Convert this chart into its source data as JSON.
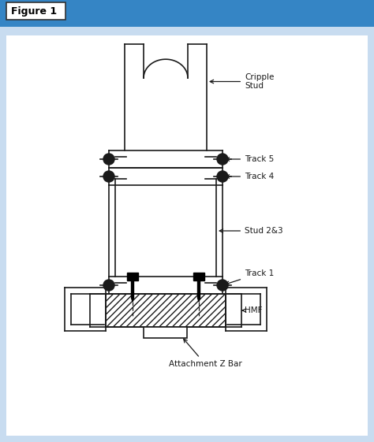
{
  "title": "Figure 1",
  "title_bg_color": "#3585C5",
  "outer_bg": "#C8DCF0",
  "inner_bg": "#FFFFFF",
  "line_color": "#1a1a1a",
  "labels": {
    "cripple_stud": "Cripple\nStud",
    "track5": "Track 5",
    "track4": "Track 4",
    "stud23": "Stud 2&3",
    "track1": "Track 1",
    "hmf": "HMF",
    "attachment": "Attachment Z Bar"
  },
  "figsize": [
    4.74,
    5.61
  ],
  "dpi": 100
}
